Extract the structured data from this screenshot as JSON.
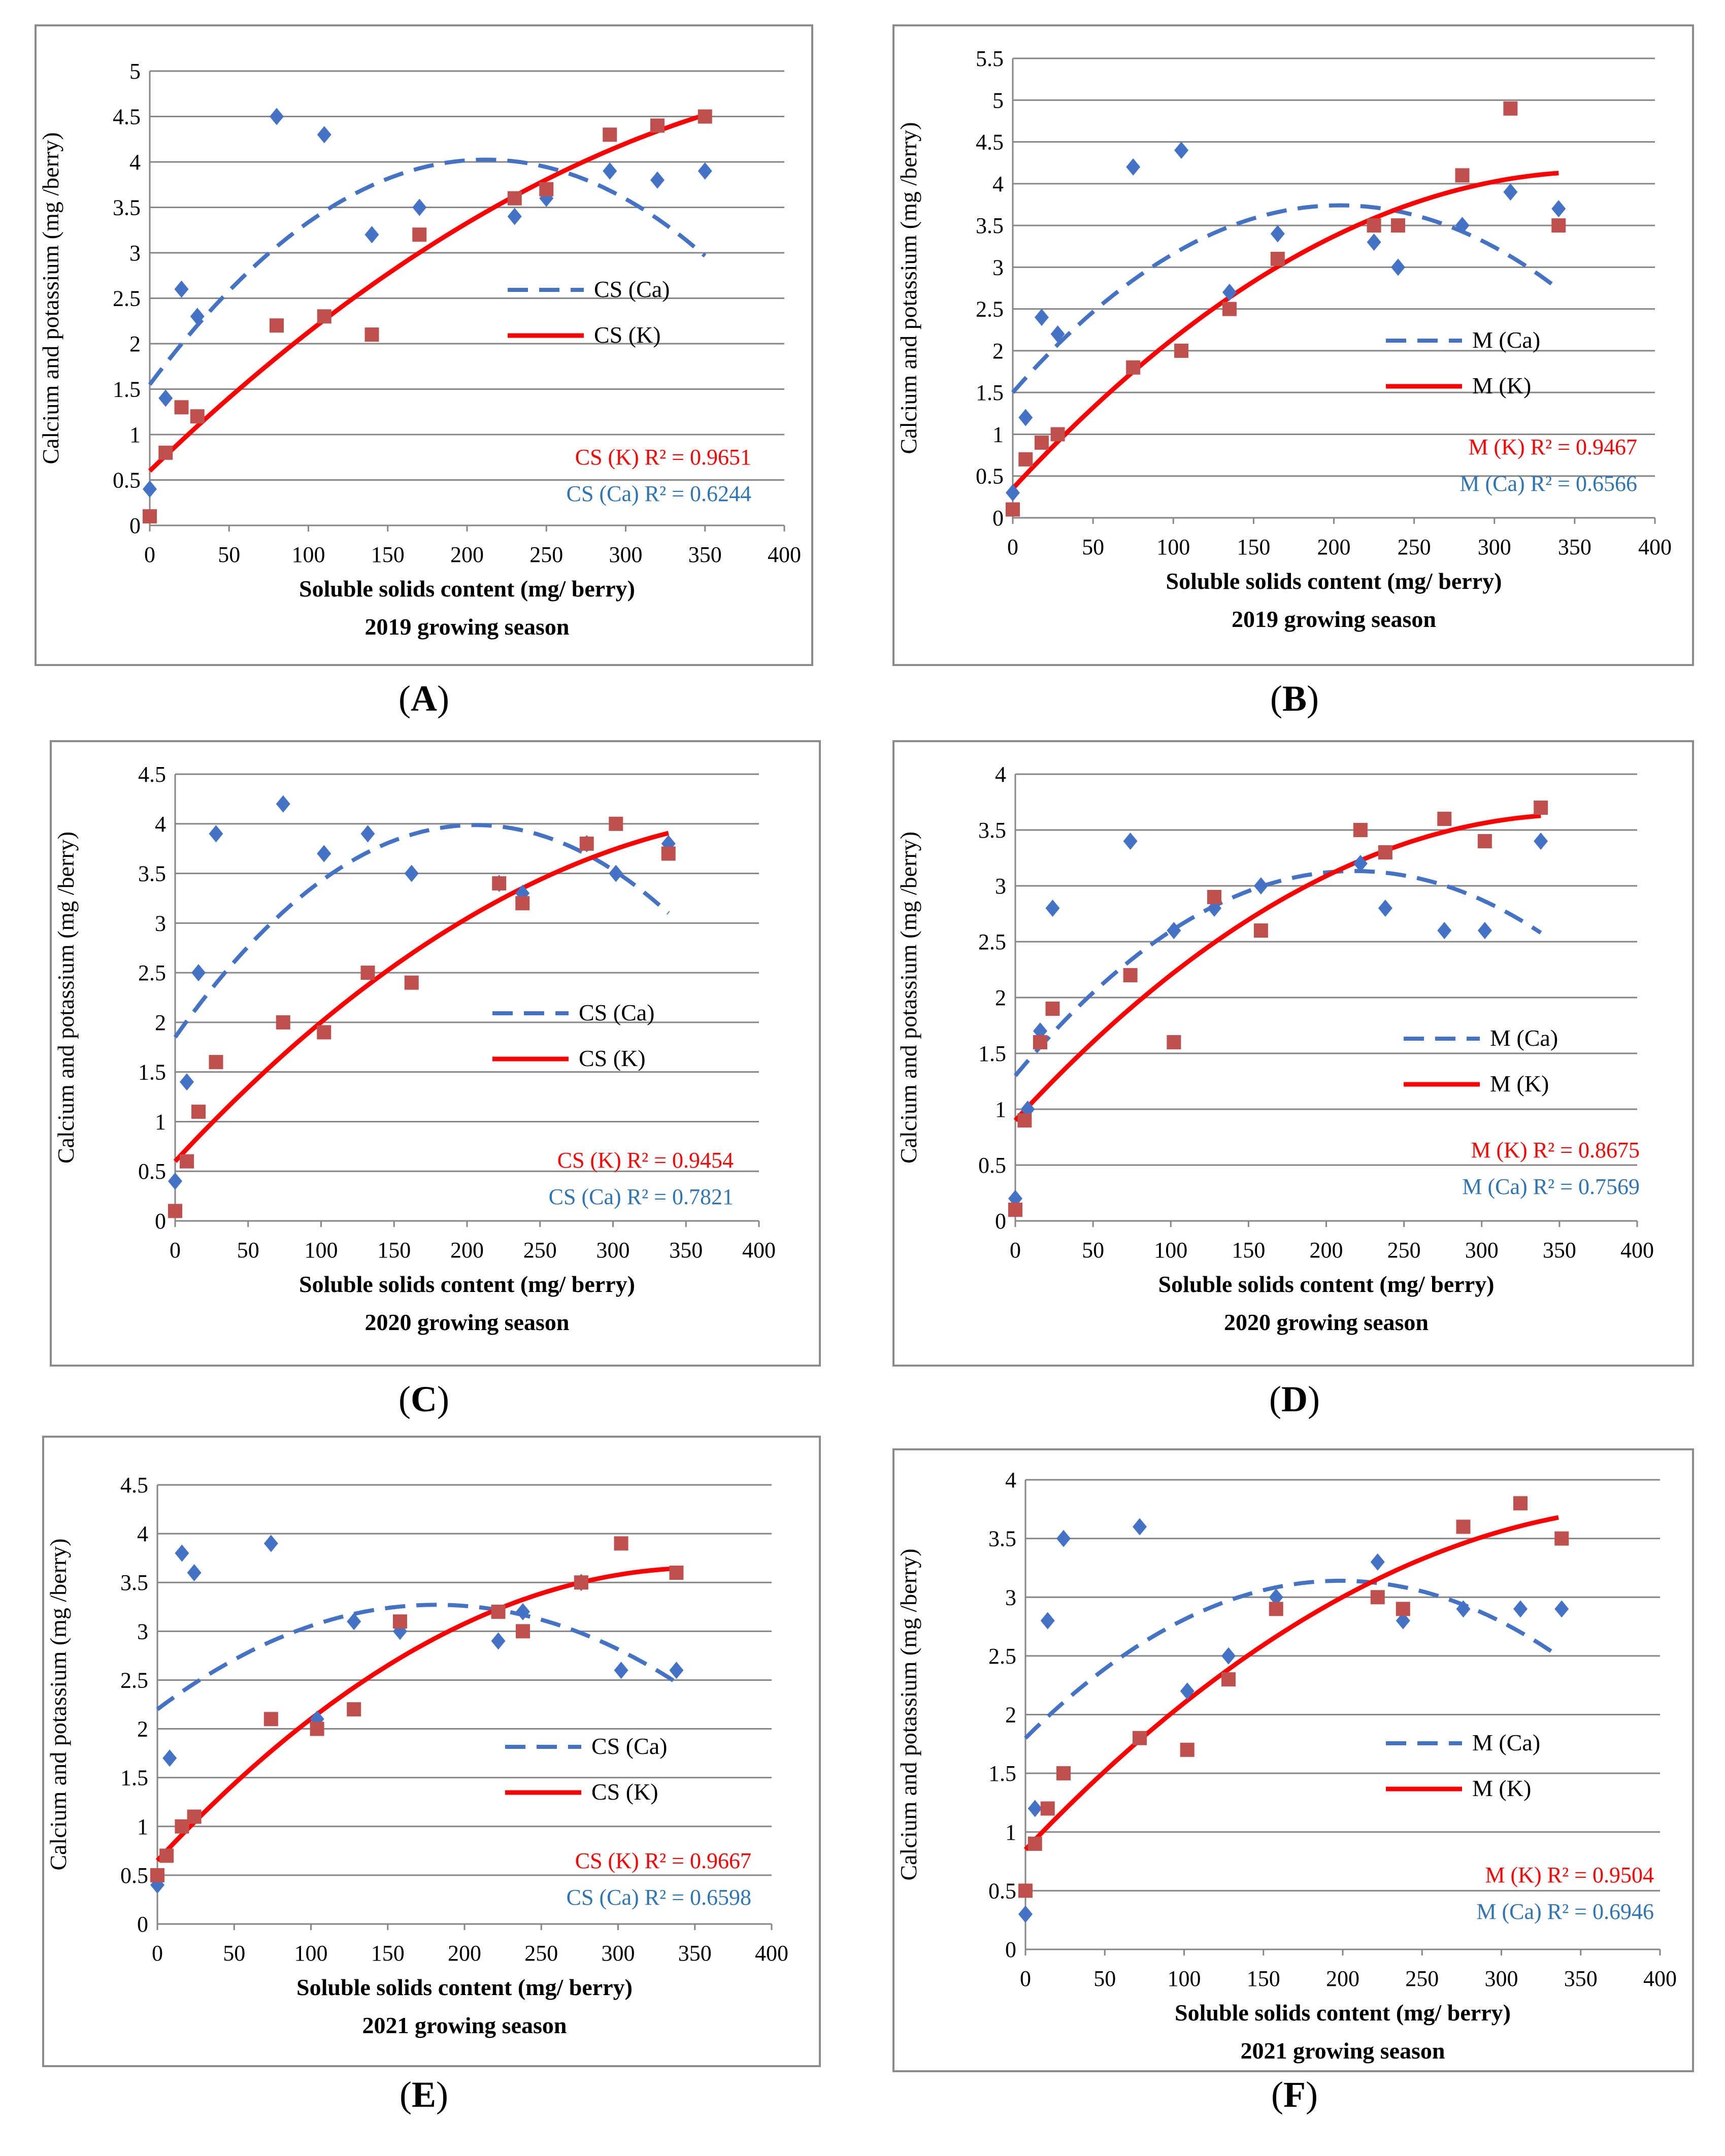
{
  "colors": {
    "ca": "#4472C4",
    "k": "#FF0000",
    "marker_k": "#C0504D",
    "r2_ca": "#2E75B6",
    "r2_k": "#FF0000"
  },
  "y_axis_label": "Calcium and potassium  (mg /berry)",
  "x_axis_label": "Soluble solids content (mg/ berry)",
  "chart_data": [
    {
      "panel": "A",
      "type": "scatter",
      "season": "2019 growing season",
      "xlim": [
        0,
        400
      ],
      "xticks": [
        0,
        50,
        100,
        150,
        200,
        250,
        300,
        350,
        400
      ],
      "ylim": [
        0,
        5
      ],
      "yticks": [
        "0",
        "0.5",
        "1",
        "1.5",
        "2",
        "2.5",
        "3",
        "3.5",
        "4",
        "4.5",
        "5"
      ],
      "series": [
        {
          "name": "CS (Ca)",
          "marker": "diamond",
          "r2_label": "CS (Ca) R² = 0.6244",
          "x": [
            0,
            10,
            20,
            30,
            80,
            110,
            140,
            170,
            230,
            250,
            290,
            320,
            350
          ],
          "y": [
            0.4,
            1.4,
            2.6,
            2.3,
            4.5,
            4.3,
            3.2,
            3.5,
            3.4,
            3.6,
            3.9,
            3.8,
            3.9
          ],
          "trend": [
            1.55,
            0.0234,
            -5.53e-05
          ],
          "trend_x": [
            0,
            350
          ]
        },
        {
          "name": "CS (K)",
          "marker": "square",
          "r2_label": "CS (K)  R² = 0.9651",
          "x": [
            0,
            10,
            20,
            30,
            80,
            110,
            140,
            170,
            230,
            250,
            290,
            320,
            350
          ],
          "y": [
            0.1,
            0.8,
            1.3,
            1.2,
            2.2,
            2.3,
            2.1,
            3.2,
            3.6,
            3.7,
            4.3,
            4.4,
            4.5
          ],
          "trend": [
            0.6,
            0.0169,
            -1.63e-05
          ],
          "trend_x": [
            0,
            350
          ]
        }
      ]
    },
    {
      "panel": "B",
      "type": "scatter",
      "season": "2019 growing season",
      "xlim": [
        0,
        400
      ],
      "xticks": [
        0,
        50,
        100,
        150,
        200,
        250,
        300,
        350,
        400
      ],
      "ylim": [
        0,
        5.5
      ],
      "yticks": [
        "0",
        "0.5",
        "1",
        "1.5",
        "2",
        "2.5",
        "3",
        "3.5",
        "4",
        "4.5",
        "5",
        "5.5"
      ],
      "series": [
        {
          "name": "M (Ca)",
          "marker": "diamond",
          "r2_label": "M (Ca) R² = 0.6566",
          "x": [
            0,
            8,
            18,
            28,
            75,
            105,
            135,
            165,
            225,
            240,
            280,
            310,
            340
          ],
          "y": [
            0.3,
            1.2,
            2.4,
            2.2,
            4.2,
            4.4,
            2.7,
            3.4,
            3.3,
            3.0,
            3.5,
            3.9,
            3.7
          ],
          "trend": [
            1.5,
            0.022,
            -5.4e-05
          ],
          "trend_x": [
            0,
            340
          ]
        },
        {
          "name": "M (K)",
          "marker": "square",
          "r2_label": "M (K)  R² = 0.9467",
          "x": [
            0,
            8,
            18,
            28,
            75,
            105,
            135,
            165,
            225,
            240,
            280,
            310,
            340
          ],
          "y": [
            0.1,
            0.7,
            0.9,
            1.0,
            1.8,
            2.0,
            2.5,
            3.1,
            3.5,
            3.5,
            4.1,
            4.9,
            3.5
          ],
          "trend": [
            0.35,
            0.0208,
            -2.85e-05
          ],
          "trend_x": [
            0,
            340
          ]
        }
      ]
    },
    {
      "panel": "C",
      "type": "scatter",
      "season": "2020 growing season",
      "xlim": [
        0,
        400
      ],
      "xticks": [
        0,
        50,
        100,
        150,
        200,
        250,
        300,
        350,
        400
      ],
      "ylim": [
        0,
        4.5
      ],
      "yticks": [
        "0",
        "0.5",
        "1",
        "1.5",
        "2",
        "2.5",
        "3",
        "3.5",
        "4",
        "4.5"
      ],
      "series": [
        {
          "name": "CS (Ca)",
          "marker": "diamond",
          "r2_label": "CS (Ca) R² = 0.7821",
          "x": [
            0,
            8,
            16,
            28,
            74,
            102,
            132,
            162,
            222,
            238,
            282,
            302,
            338
          ],
          "y": [
            0.4,
            1.4,
            2.5,
            3.9,
            4.2,
            3.7,
            3.9,
            3.5,
            3.4,
            3.3,
            3.8,
            3.5,
            3.8
          ],
          "trend": [
            1.85,
            0.0208,
            -5.06e-05
          ],
          "trend_x": [
            0,
            338
          ]
        },
        {
          "name": "CS (K)",
          "marker": "square",
          "r2_label": "CS (K)  R² = 0.9454",
          "x": [
            0,
            8,
            16,
            28,
            74,
            102,
            132,
            162,
            222,
            238,
            282,
            302,
            338
          ],
          "y": [
            0.1,
            0.6,
            1.1,
            1.6,
            2.0,
            1.9,
            2.5,
            2.4,
            3.4,
            3.2,
            3.8,
            4.0,
            3.7
          ],
          "trend": [
            0.6,
            0.0158,
            -1.78e-05
          ],
          "trend_x": [
            0,
            338
          ]
        }
      ]
    },
    {
      "panel": "D",
      "type": "scatter",
      "season": "2020 growing season",
      "xlim": [
        0,
        400
      ],
      "xticks": [
        0,
        50,
        100,
        150,
        200,
        250,
        300,
        350,
        400
      ],
      "ylim": [
        0,
        4
      ],
      "yticks": [
        "0",
        "0.5",
        "1",
        "1.5",
        "2",
        "2.5",
        "3",
        "3.5",
        "4"
      ],
      "series": [
        {
          "name": "M (Ca)",
          "marker": "diamond",
          "r2_label": "M (Ca) R² = 0.7569",
          "x": [
            0,
            8,
            16,
            24,
            74,
            102,
            128,
            158,
            222,
            238,
            276,
            302,
            338
          ],
          "y": [
            0.2,
            1.0,
            1.7,
            2.8,
            3.4,
            2.6,
            2.8,
            3.0,
            3.2,
            2.8,
            2.6,
            2.6,
            3.4
          ],
          "trend": [
            1.3,
            0.0168,
            -3.85e-05
          ],
          "trend_x": [
            0,
            338
          ]
        },
        {
          "name": "M (K)",
          "marker": "square",
          "r2_label": "M (K)  R² = 0.8675",
          "x": [
            0,
            6,
            16,
            24,
            74,
            102,
            128,
            158,
            222,
            238,
            276,
            302,
            338
          ],
          "y": [
            0.1,
            0.9,
            1.6,
            1.9,
            2.2,
            1.6,
            2.9,
            2.6,
            3.5,
            3.3,
            3.6,
            3.4,
            3.7
          ],
          "trend": [
            0.9,
            0.0151,
            -2.08e-05
          ],
          "trend_x": [
            0,
            338
          ]
        }
      ]
    },
    {
      "panel": "E",
      "type": "scatter",
      "season": "2021 growing season",
      "xlim": [
        0,
        400
      ],
      "xticks": [
        0,
        50,
        100,
        150,
        200,
        250,
        300,
        350,
        400
      ],
      "ylim": [
        0,
        4.5
      ],
      "yticks": [
        "0",
        "0.5",
        "1",
        "1.5",
        "2",
        "2.5",
        "3",
        "3.5",
        "4",
        "4.5"
      ],
      "series": [
        {
          "name": "CS (Ca)",
          "marker": "diamond",
          "r2_label": "CS (Ca) R² = 0.6598",
          "x": [
            0,
            8,
            16,
            24,
            74,
            104,
            128,
            158,
            222,
            238,
            276,
            302,
            338
          ],
          "y": [
            0.4,
            1.7,
            3.8,
            3.6,
            3.9,
            2.1,
            3.1,
            3.0,
            2.9,
            3.2,
            3.5,
            2.6,
            2.6
          ],
          "trend": [
            2.2,
            0.0118,
            -3.25e-05
          ],
          "trend_x": [
            0,
            338
          ]
        },
        {
          "name": "CS (K)",
          "marker": "square",
          "r2_label": "CS (K) R² = 0.9667",
          "x": [
            0,
            6,
            16,
            24,
            74,
            104,
            128,
            158,
            222,
            238,
            276,
            302,
            338
          ],
          "y": [
            0.5,
            0.7,
            1.0,
            1.1,
            2.1,
            2.0,
            2.2,
            3.1,
            3.2,
            3.0,
            3.5,
            3.9,
            3.6
          ],
          "trend": [
            0.65,
            0.0169,
            -2.38e-05
          ],
          "trend_x": [
            0,
            338
          ]
        }
      ]
    },
    {
      "panel": "F",
      "type": "scatter",
      "season": "2021 growing season",
      "xlim": [
        0,
        400
      ],
      "xticks": [
        0,
        50,
        100,
        150,
        200,
        250,
        300,
        350,
        400
      ],
      "ylim": [
        0,
        4
      ],
      "yticks": [
        "0",
        "0.5",
        "1",
        "1.5",
        "2",
        "2.5",
        "3",
        "3.5",
        "4"
      ],
      "series": [
        {
          "name": "M (Ca)",
          "marker": "diamond",
          "r2_label": "M (Ca) R² = 0.6946",
          "x": [
            0,
            6,
            14,
            24,
            72,
            102,
            128,
            158,
            222,
            238,
            276,
            312,
            338
          ],
          "y": [
            0.3,
            1.2,
            2.8,
            3.5,
            3.6,
            2.2,
            2.5,
            3.0,
            3.3,
            2.8,
            2.9,
            2.9,
            2.9
          ],
          "trend": [
            1.8,
            0.0135,
            -3.4e-05
          ],
          "trend_x": [
            0,
            336
          ]
        },
        {
          "name": "M (K)",
          "marker": "square",
          "r2_label": "M (K) R² = 0.9504",
          "x": [
            0,
            6,
            14,
            24,
            72,
            102,
            128,
            158,
            222,
            238,
            276,
            312,
            338
          ],
          "y": [
            0.5,
            0.9,
            1.2,
            1.5,
            1.8,
            1.7,
            2.3,
            2.9,
            3.0,
            2.9,
            3.6,
            3.8,
            3.5
          ],
          "trend": [
            0.85,
            0.0142,
            -1.72e-05
          ],
          "trend_x": [
            0,
            336
          ]
        }
      ]
    }
  ],
  "panel_labels": [
    "(A)",
    "(B)",
    "(C)",
    "(D)",
    "(E)",
    "(F)"
  ]
}
